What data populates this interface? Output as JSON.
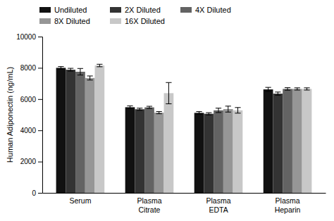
{
  "chart_data": {
    "type": "bar",
    "categories": [
      "Serum",
      "Plasma\nCitrate",
      "Plasma\nEDTA",
      "Plasma\nHeparin"
    ],
    "series": [
      {
        "name": "Undiluted",
        "color": "#111111",
        "values": [
          8000,
          5480,
          5120,
          6620
        ],
        "errors": [
          80,
          90,
          80,
          130
        ]
      },
      {
        "name": "2X Diluted",
        "color": "#333333",
        "values": [
          7880,
          5350,
          5060,
          6350
        ],
        "errors": [
          90,
          70,
          70,
          100
        ]
      },
      {
        "name": "4X Diluted",
        "color": "#636363",
        "values": [
          7750,
          5470,
          5280,
          6650
        ],
        "errors": [
          210,
          70,
          140,
          80
        ]
      },
      {
        "name": "8X Diluted",
        "color": "#969696",
        "values": [
          7350,
          5130,
          5360,
          6650
        ],
        "errors": [
          130,
          70,
          190,
          70
        ]
      },
      {
        "name": "16X Diluted",
        "color": "#c8c8c8",
        "values": [
          8150,
          6380,
          5280,
          6650
        ],
        "errors": [
          80,
          680,
          180,
          70
        ]
      }
    ],
    "ylabel": "Human Adiponectin (ng/mL)",
    "ylim": [
      0,
      10000
    ],
    "yticks": [
      0,
      2000,
      4000,
      6000,
      8000,
      10000
    ],
    "grid": false,
    "legend": "upper left"
  }
}
